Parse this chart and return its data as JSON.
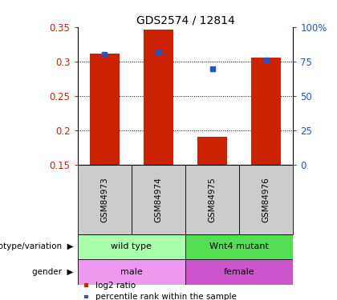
{
  "title": "GDS2574 / 12814",
  "samples": [
    "GSM84973",
    "GSM84974",
    "GSM84975",
    "GSM84976"
  ],
  "log2_ratio": [
    0.312,
    0.346,
    0.191,
    0.306
  ],
  "log2_baseline": 0.15,
  "percentile_rank": [
    80,
    82,
    70,
    76
  ],
  "ylim_left": [
    0.15,
    0.35
  ],
  "ylim_right": [
    0,
    100
  ],
  "yticks_left": [
    0.15,
    0.2,
    0.25,
    0.3,
    0.35
  ],
  "ytick_labels_left": [
    "0.15",
    "0.2",
    "0.25",
    "0.3",
    "0.35"
  ],
  "yticks_right": [
    0,
    25,
    50,
    75,
    100
  ],
  "ytick_labels_right": [
    "0",
    "25",
    "50",
    "75",
    "100%"
  ],
  "bar_color": "#cc2200",
  "dot_color": "#2255cc",
  "genotype": [
    [
      "wild type",
      0,
      2
    ],
    [
      "Wnt4 mutant",
      2,
      4
    ]
  ],
  "genotype_colors": [
    "#aaffaa",
    "#55dd55"
  ],
  "gender": [
    [
      "male",
      0,
      2
    ],
    [
      "female",
      2,
      4
    ]
  ],
  "gender_colors": [
    "#ee99ee",
    "#cc55cc"
  ],
  "sample_box_color": "#cccccc",
  "legend_items": [
    {
      "label": "log2 ratio",
      "color": "#cc2200"
    },
    {
      "label": "percentile rank within the sample",
      "color": "#2255cc"
    }
  ],
  "left_label_color": "#cc2200",
  "right_label_color": "#2255cc",
  "x_positions": [
    0.5,
    1.5,
    2.5,
    3.5
  ],
  "bar_width": 0.55,
  "grid_yticks": [
    0.2,
    0.25,
    0.3
  ]
}
